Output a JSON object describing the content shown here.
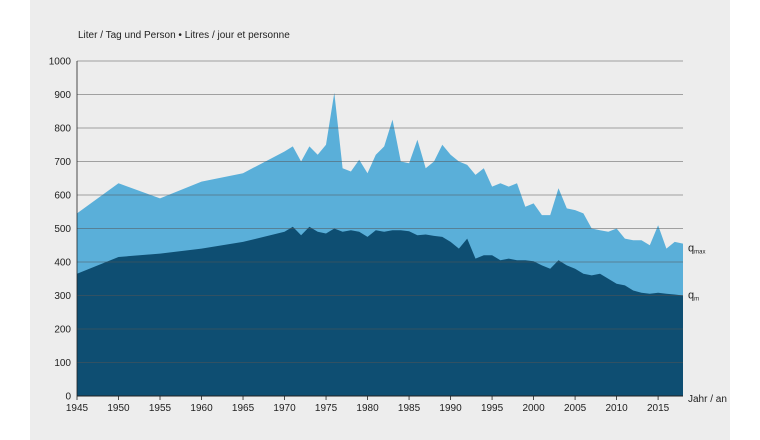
{
  "chart_data": {
    "type": "area",
    "title": "",
    "subtitle": "Liter / Tag und Person • Litres / jour et personne",
    "xlabel": "Jahr / an",
    "ylabel": "",
    "xlim": [
      1945,
      2018
    ],
    "ylim": [
      0,
      1000
    ],
    "x_ticks": [
      1945,
      1950,
      1955,
      1960,
      1965,
      1970,
      1975,
      1980,
      1985,
      1990,
      1995,
      2000,
      2005,
      2010,
      2015
    ],
    "y_ticks": [
      0,
      100,
      200,
      300,
      400,
      500,
      600,
      700,
      800,
      900,
      1000
    ],
    "grid": "horizontal",
    "colors": {
      "qmax": "#5aafd9",
      "qm": "#0e4e72",
      "background": "#ededed",
      "grid": "#555555"
    },
    "series": [
      {
        "name": "q",
        "name_sub": "max",
        "points": [
          [
            1945,
            545
          ],
          [
            1950,
            635
          ],
          [
            1955,
            590
          ],
          [
            1960,
            640
          ],
          [
            1965,
            665
          ],
          [
            1970,
            730
          ],
          [
            1971,
            745
          ],
          [
            1972,
            700
          ],
          [
            1973,
            745
          ],
          [
            1974,
            720
          ],
          [
            1975,
            750
          ],
          [
            1976,
            905
          ],
          [
            1977,
            680
          ],
          [
            1978,
            670
          ],
          [
            1979,
            705
          ],
          [
            1980,
            665
          ],
          [
            1981,
            720
          ],
          [
            1982,
            745
          ],
          [
            1983,
            825
          ],
          [
            1984,
            700
          ],
          [
            1985,
            695
          ],
          [
            1986,
            765
          ],
          [
            1987,
            680
          ],
          [
            1988,
            700
          ],
          [
            1989,
            750
          ],
          [
            1990,
            720
          ],
          [
            1991,
            700
          ],
          [
            1992,
            690
          ],
          [
            1993,
            660
          ],
          [
            1994,
            680
          ],
          [
            1995,
            625
          ],
          [
            1996,
            635
          ],
          [
            1997,
            625
          ],
          [
            1998,
            635
          ],
          [
            1999,
            565
          ],
          [
            2000,
            575
          ],
          [
            2001,
            540
          ],
          [
            2002,
            540
          ],
          [
            2003,
            620
          ],
          [
            2004,
            560
          ],
          [
            2005,
            555
          ],
          [
            2006,
            545
          ],
          [
            2007,
            500
          ],
          [
            2008,
            495
          ],
          [
            2009,
            490
          ],
          [
            2010,
            500
          ],
          [
            2011,
            470
          ],
          [
            2012,
            465
          ],
          [
            2013,
            465
          ],
          [
            2014,
            450
          ],
          [
            2015,
            510
          ],
          [
            2016,
            440
          ],
          [
            2017,
            460
          ],
          [
            2018,
            455
          ]
        ]
      },
      {
        "name": "q",
        "name_sub": "m",
        "points": [
          [
            1945,
            365
          ],
          [
            1950,
            415
          ],
          [
            1955,
            425
          ],
          [
            1960,
            440
          ],
          [
            1965,
            460
          ],
          [
            1970,
            490
          ],
          [
            1971,
            505
          ],
          [
            1972,
            480
          ],
          [
            1973,
            505
          ],
          [
            1974,
            490
          ],
          [
            1975,
            485
          ],
          [
            1976,
            500
          ],
          [
            1977,
            490
          ],
          [
            1978,
            495
          ],
          [
            1979,
            490
          ],
          [
            1980,
            475
          ],
          [
            1981,
            495
          ],
          [
            1982,
            490
          ],
          [
            1983,
            495
          ],
          [
            1984,
            495
          ],
          [
            1985,
            492
          ],
          [
            1986,
            480
          ],
          [
            1987,
            482
          ],
          [
            1988,
            478
          ],
          [
            1989,
            475
          ],
          [
            1990,
            460
          ],
          [
            1991,
            440
          ],
          [
            1992,
            470
          ],
          [
            1993,
            410
          ],
          [
            1994,
            420
          ],
          [
            1995,
            420
          ],
          [
            1996,
            405
          ],
          [
            1997,
            410
          ],
          [
            1998,
            405
          ],
          [
            1999,
            405
          ],
          [
            2000,
            402
          ],
          [
            2001,
            390
          ],
          [
            2002,
            380
          ],
          [
            2003,
            405
          ],
          [
            2004,
            390
          ],
          [
            2005,
            380
          ],
          [
            2006,
            365
          ],
          [
            2007,
            360
          ],
          [
            2008,
            365
          ],
          [
            2009,
            350
          ],
          [
            2010,
            335
          ],
          [
            2011,
            330
          ],
          [
            2012,
            315
          ],
          [
            2013,
            308
          ],
          [
            2014,
            305
          ],
          [
            2015,
            308
          ],
          [
            2016,
            305
          ],
          [
            2017,
            303
          ],
          [
            2018,
            300
          ]
        ]
      }
    ]
  }
}
